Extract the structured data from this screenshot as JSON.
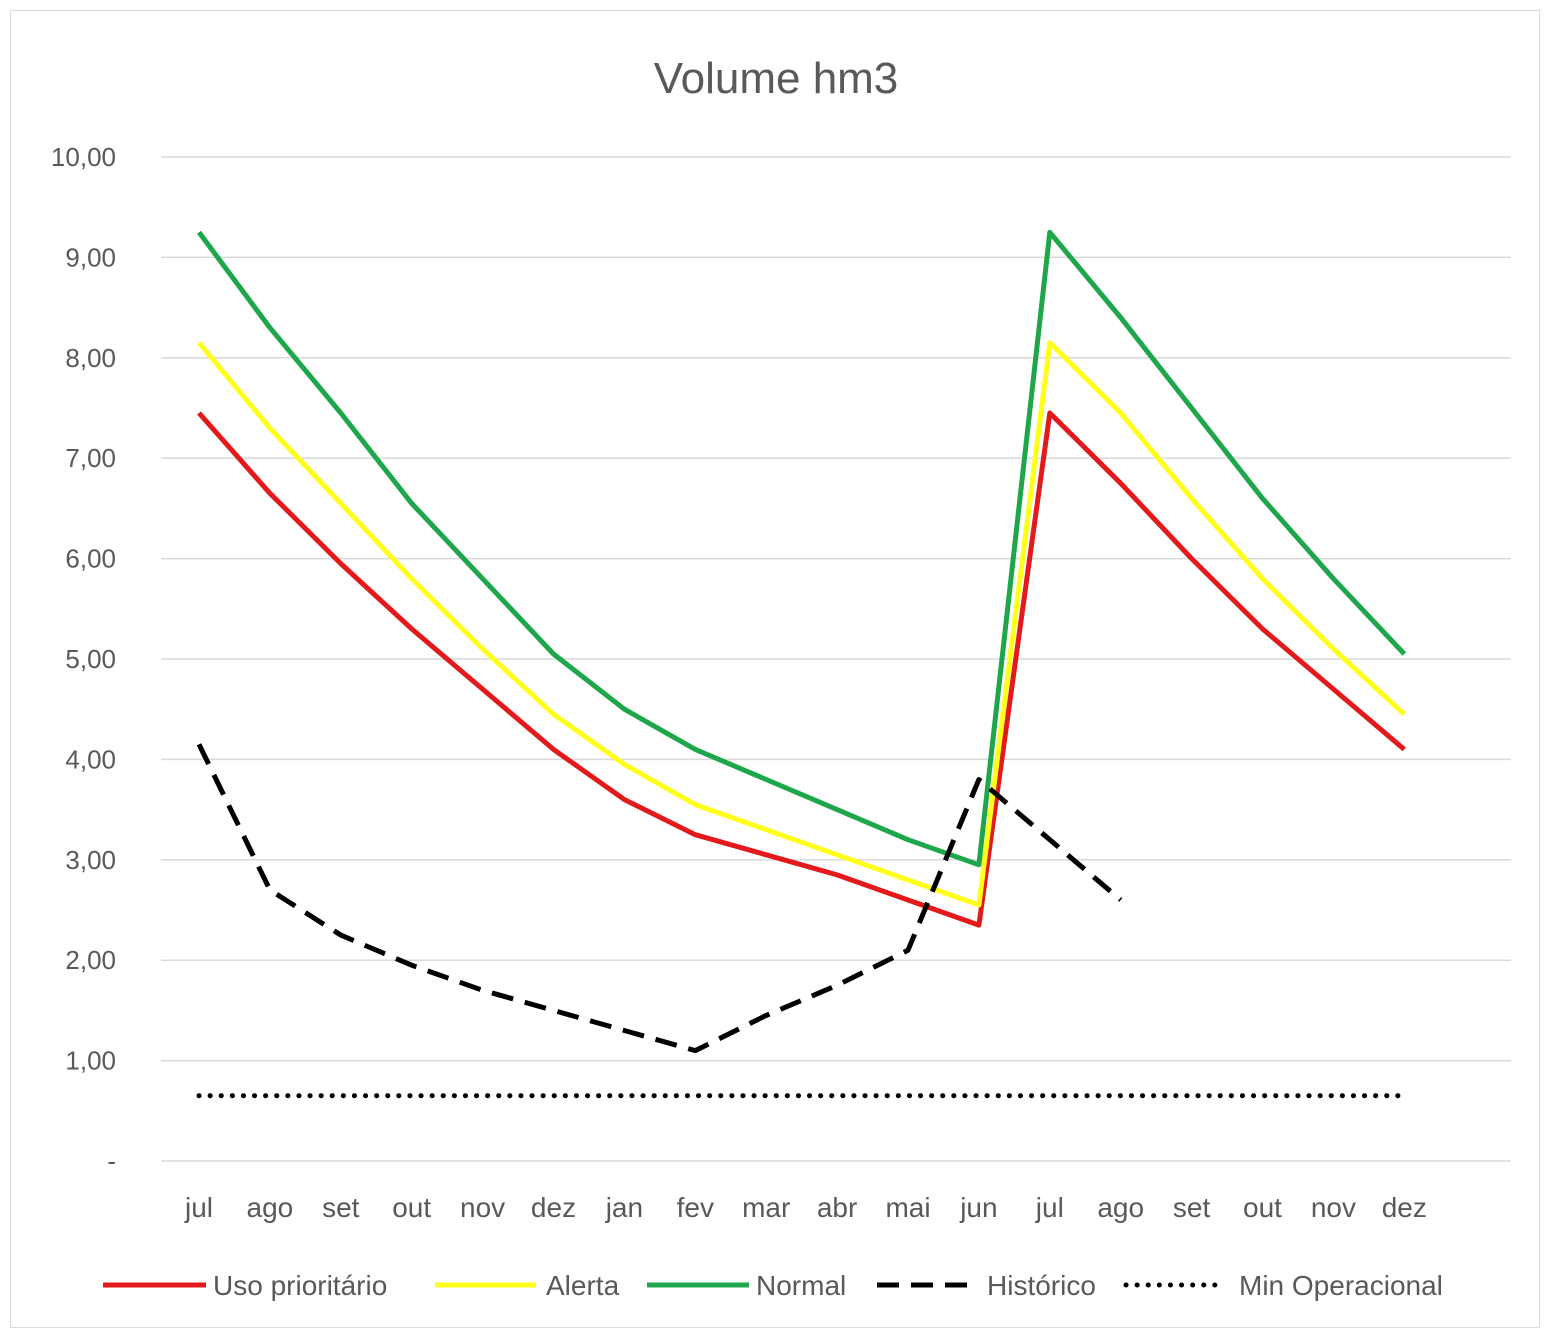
{
  "chart_data": {
    "type": "line",
    "title": "Volume hm3",
    "xlabel": "",
    "ylabel": "",
    "ylim": [
      0,
      10
    ],
    "yticks": [
      {
        "value": 0,
        "label": "-"
      },
      {
        "value": 1,
        "label": "1,00"
      },
      {
        "value": 2,
        "label": "2,00"
      },
      {
        "value": 3,
        "label": "3,00"
      },
      {
        "value": 4,
        "label": "4,00"
      },
      {
        "value": 5,
        "label": "5,00"
      },
      {
        "value": 6,
        "label": "6,00"
      },
      {
        "value": 7,
        "label": "7,00"
      },
      {
        "value": 8,
        "label": "8,00"
      },
      {
        "value": 9,
        "label": "9,00"
      },
      {
        "value": 10,
        "label": "10,00"
      }
    ],
    "categories": [
      "jul",
      "ago",
      "set",
      "out",
      "nov",
      "dez",
      "jan",
      "fev",
      "mar",
      "abr",
      "mai",
      "jun",
      "jul",
      "ago",
      "set",
      "out",
      "nov",
      "dez"
    ],
    "grid": true,
    "legend_position": "bottom",
    "series": [
      {
        "name": "Uso prioritário",
        "color": "#e31a1c",
        "style": "solid",
        "values": [
          7.45,
          6.65,
          5.95,
          5.3,
          4.7,
          4.1,
          3.6,
          3.25,
          3.05,
          2.85,
          2.6,
          2.35,
          7.45,
          6.75,
          6.0,
          5.3,
          4.7,
          4.1
        ]
      },
      {
        "name": "Alerta",
        "color": "#ffff1a",
        "style": "solid",
        "values": [
          8.15,
          7.3,
          6.55,
          5.8,
          5.1,
          4.45,
          3.95,
          3.55,
          3.3,
          3.05,
          2.8,
          2.55,
          8.15,
          7.45,
          6.6,
          5.8,
          5.1,
          4.45
        ]
      },
      {
        "name": "Normal",
        "color": "#1ea64b",
        "style": "solid",
        "values": [
          9.25,
          8.3,
          7.45,
          6.55,
          5.8,
          5.05,
          4.5,
          4.1,
          3.8,
          3.5,
          3.2,
          2.95,
          9.25,
          8.4,
          7.5,
          6.6,
          5.8,
          5.05
        ]
      },
      {
        "name": "Histórico",
        "color": "#000000",
        "style": "dashed",
        "values": [
          4.15,
          2.7,
          2.25,
          1.95,
          1.7,
          1.5,
          1.3,
          1.1,
          1.45,
          1.75,
          2.1,
          3.8,
          3.2,
          2.6,
          null,
          null,
          null,
          null
        ]
      },
      {
        "name": "Min Operacional",
        "color": "#000000",
        "style": "dotted",
        "values": [
          0.65,
          0.65,
          0.65,
          0.65,
          0.65,
          0.65,
          0.65,
          0.65,
          0.65,
          0.65,
          0.65,
          0.65,
          0.65,
          0.65,
          0.65,
          0.65,
          0.65,
          0.65
        ]
      }
    ]
  }
}
